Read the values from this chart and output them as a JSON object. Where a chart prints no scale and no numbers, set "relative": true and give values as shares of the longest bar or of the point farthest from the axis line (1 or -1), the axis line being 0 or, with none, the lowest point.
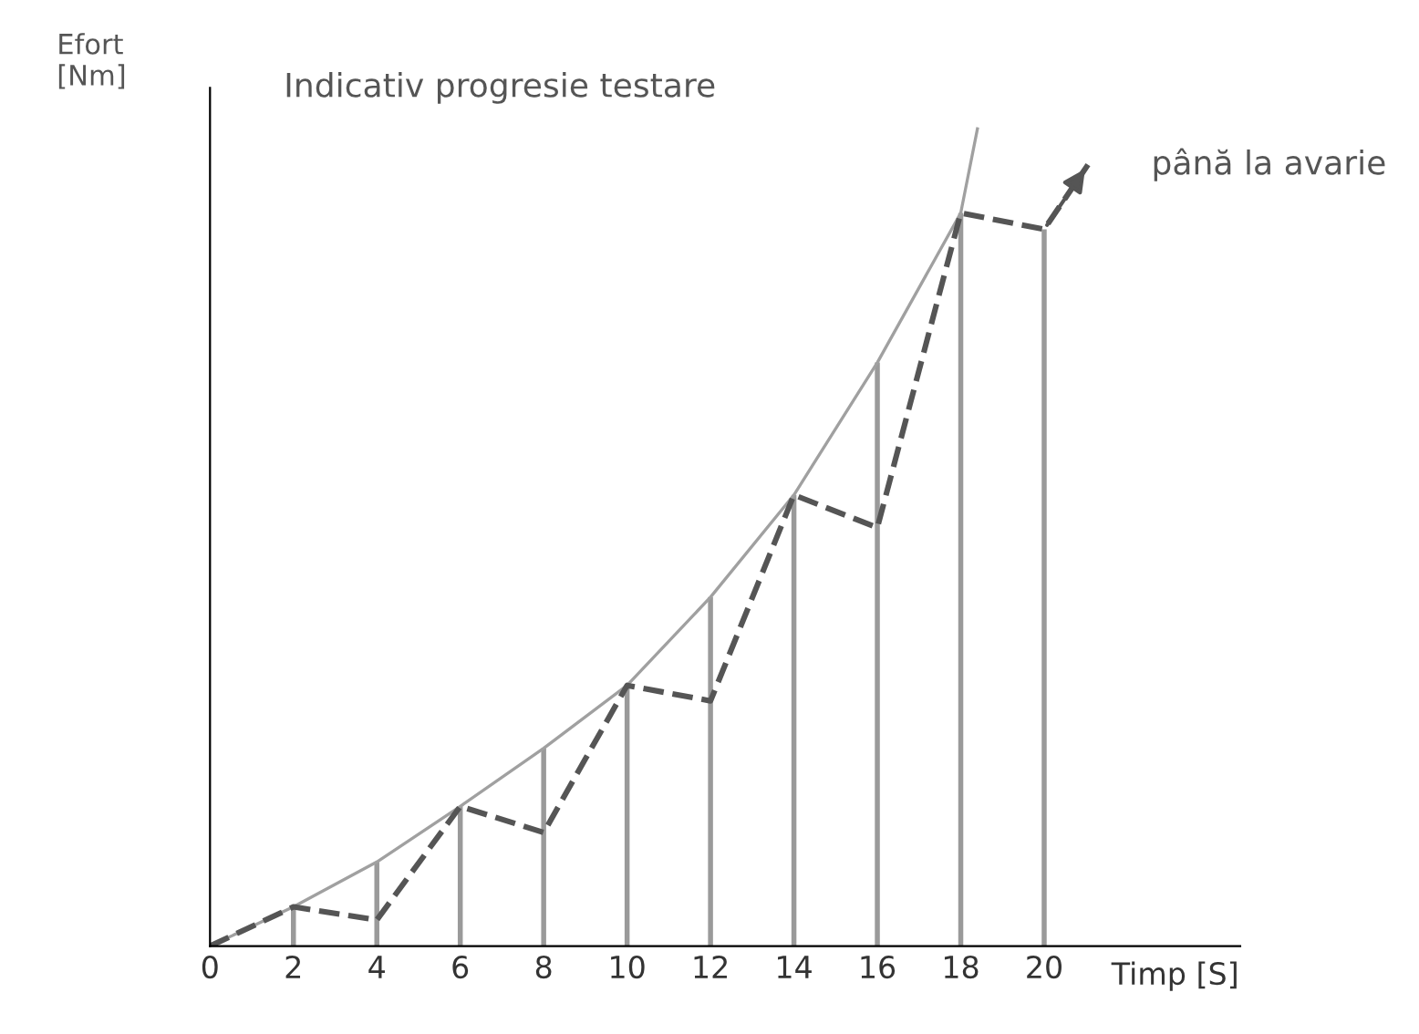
{
  "chart_data": {
    "type": "line",
    "relative": true,
    "title": "Indicativ progresie testare",
    "xlabel": "Timp [S]",
    "ylabel": "Efort\n[Nm]",
    "xlim": [
      0,
      24.7
    ],
    "xticks": [
      0,
      2,
      4,
      6,
      8,
      10,
      12,
      14,
      16,
      18,
      20
    ],
    "grid": false,
    "legend": false,
    "marker": "none",
    "series": [
      {
        "type": "bar",
        "color": "#9a9a9a",
        "x": [
          0,
          2,
          4,
          6,
          8,
          10,
          12,
          14,
          16,
          18,
          20
        ],
        "values": [
          0,
          0.048,
          0.103,
          0.171,
          0.242,
          0.319,
          0.427,
          0.552,
          0.714,
          0.897,
          0.877
        ]
      },
      {
        "color": "#a0a0a0",
        "line_style": "solid",
        "x": [
          0,
          2,
          4,
          6,
          8,
          10,
          12,
          14,
          16,
          18,
          18.4
        ],
        "values": [
          0,
          0.048,
          0.103,
          0.171,
          0.242,
          0.319,
          0.427,
          0.552,
          0.714,
          0.897,
          1.0
        ]
      },
      {
        "color": "#555555",
        "line_style": "dashed",
        "x": [
          0,
          2,
          4,
          6,
          8,
          10,
          12,
          14,
          16,
          18,
          20,
          21.05
        ],
        "values": [
          0,
          0.048,
          0.032,
          0.171,
          0.139,
          0.319,
          0.3,
          0.552,
          0.512,
          0.897,
          0.877,
          0.956
        ]
      }
    ],
    "annotations": [
      {
        "text": "până la avarie",
        "x": 21.05,
        "y": 0.956
      }
    ]
  }
}
